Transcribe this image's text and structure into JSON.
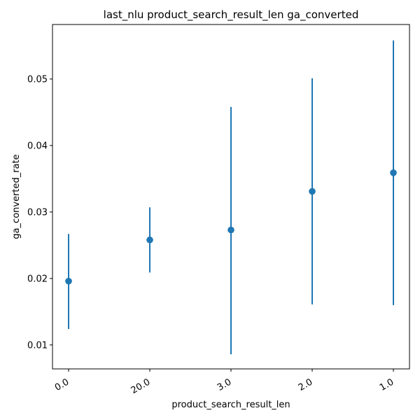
{
  "chart_data": {
    "type": "scatter",
    "title": "last_nlu product_search_result_len ga_converted",
    "xlabel": "product_search_result_len",
    "ylabel": "ga_converted_rate",
    "categories": [
      "0.0",
      "20.0",
      "3.0",
      "2.0",
      "1.0"
    ],
    "series": [
      {
        "values": [
          0.0196,
          0.0258,
          0.0273,
          0.0331,
          0.0359
        ],
        "error_low": [
          0.0124,
          0.0209,
          0.0086,
          0.0161,
          0.016
        ],
        "error_high": [
          0.0267,
          0.0307,
          0.0458,
          0.0501,
          0.0558
        ]
      }
    ],
    "ylim": [
      0.0064,
      0.0582
    ],
    "yticks": [
      0.01,
      0.02,
      0.03,
      0.04,
      0.05
    ],
    "ytick_labels": [
      "0.01",
      "0.02",
      "0.03",
      "0.04",
      "0.05"
    ],
    "x_tick_rotation": 30,
    "grid": false,
    "color": "#1f77b4"
  }
}
